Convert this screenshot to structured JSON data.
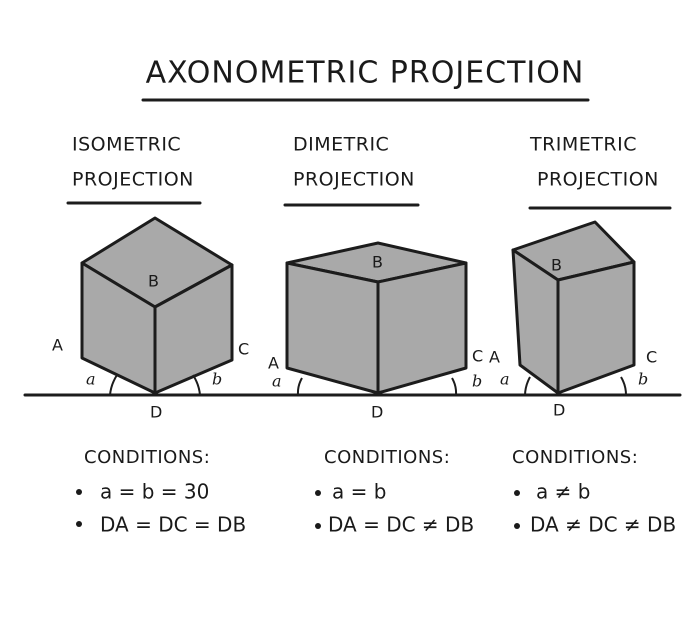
{
  "header": {
    "title": "AXONOMETRIC PROJECTION"
  },
  "panels": [
    {
      "title": [
        "ISOMETRIC",
        "PROJECTION"
      ],
      "labels": {
        "a": "A",
        "b": "B",
        "c": "C",
        "d": "D",
        "angle_a": "a",
        "angle_b": "b"
      },
      "conditions_heading": "CONDITIONS:",
      "conditions": [
        "a = b = 30",
        "DA = DC = DB"
      ]
    },
    {
      "title": [
        "DIMETRIC",
        "PROJECTION"
      ],
      "labels": {
        "a": "A",
        "b": "B",
        "c": "C",
        "d": "D",
        "angle_a": "a",
        "angle_b": "b"
      },
      "conditions_heading": "CONDITIONS:",
      "conditions": [
        "a = b",
        "DA = DC ≠ DB"
      ]
    },
    {
      "title": [
        "TRIMETRIC",
        "PROJECTION"
      ],
      "labels": {
        "a": "A",
        "b": "B",
        "c": "C",
        "d": "D",
        "angle_a": "a",
        "angle_b": "b"
      },
      "conditions_heading": "CONDITIONS:",
      "conditions": [
        "a ≠ b",
        "DA ≠ DC ≠ DB"
      ]
    }
  ]
}
